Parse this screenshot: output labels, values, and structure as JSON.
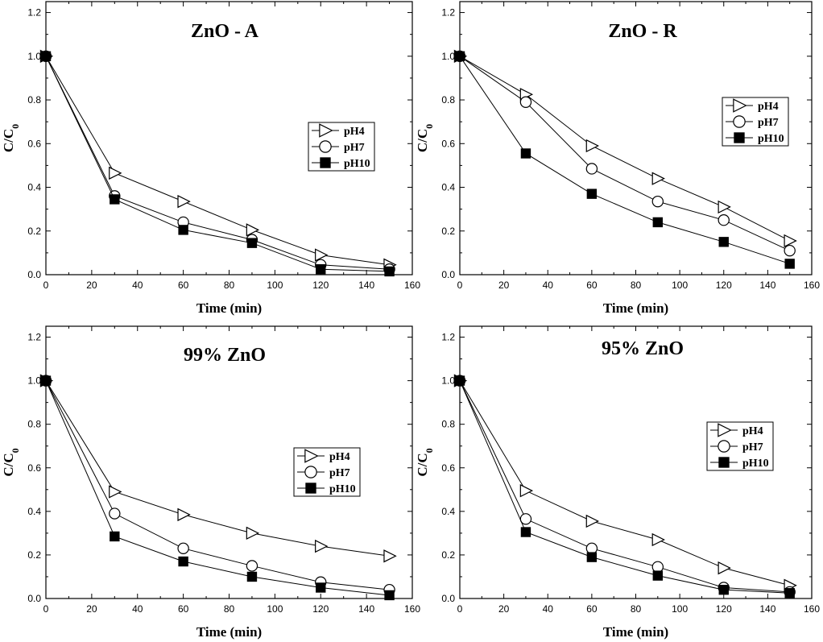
{
  "chart_data": [
    {
      "type": "line",
      "title": "ZnO - A",
      "xlabel": "Time (min)",
      "ylabel": "C/C0",
      "xlim": [
        0,
        160
      ],
      "ylim": [
        0,
        1.25
      ],
      "xticks": [
        0,
        20,
        40,
        60,
        80,
        100,
        120,
        140,
        160
      ],
      "yticks": [
        0.0,
        0.2,
        0.4,
        0.6,
        0.8,
        1.0,
        1.2
      ],
      "x": [
        0,
        30,
        60,
        90,
        120,
        150
      ],
      "legend_position": "center-right",
      "series": [
        {
          "name": "pH4",
          "marker": "triangle-right-open",
          "values": [
            1.0,
            0.465,
            0.335,
            0.205,
            0.09,
            0.045
          ]
        },
        {
          "name": "pH7",
          "marker": "circle-open",
          "values": [
            1.0,
            0.36,
            0.24,
            0.16,
            0.045,
            0.025
          ]
        },
        {
          "name": "pH10",
          "marker": "square-filled",
          "values": [
            1.0,
            0.345,
            0.205,
            0.145,
            0.025,
            0.015
          ]
        }
      ]
    },
    {
      "type": "line",
      "title": "ZnO - R",
      "xlabel": "Time (min)",
      "ylabel": "C/C0",
      "xlim": [
        0,
        160
      ],
      "ylim": [
        0,
        1.25
      ],
      "xticks": [
        0,
        20,
        40,
        60,
        80,
        100,
        120,
        140,
        160
      ],
      "yticks": [
        0.0,
        0.2,
        0.4,
        0.6,
        0.8,
        1.0,
        1.2
      ],
      "x": [
        0,
        30,
        60,
        90,
        120,
        150
      ],
      "legend_position": "upper-right",
      "series": [
        {
          "name": "pH4",
          "marker": "triangle-right-open",
          "values": [
            1.0,
            0.825,
            0.59,
            0.44,
            0.31,
            0.155
          ]
        },
        {
          "name": "pH7",
          "marker": "circle-open",
          "values": [
            1.0,
            0.79,
            0.485,
            0.335,
            0.25,
            0.11
          ]
        },
        {
          "name": "pH10",
          "marker": "square-filled",
          "values": [
            1.0,
            0.555,
            0.37,
            0.24,
            0.15,
            0.05
          ]
        }
      ]
    },
    {
      "type": "line",
      "title": "99% ZnO",
      "xlabel": "Time (min)",
      "ylabel": "C/C0",
      "xlim": [
        0,
        160
      ],
      "ylim": [
        0,
        1.25
      ],
      "xticks": [
        0,
        20,
        40,
        60,
        80,
        100,
        120,
        140,
        160
      ],
      "yticks": [
        0.0,
        0.2,
        0.4,
        0.6,
        0.8,
        1.0,
        1.2
      ],
      "x": [
        0,
        30,
        60,
        90,
        120,
        150
      ],
      "legend_position": "center-right",
      "series": [
        {
          "name": "pH4",
          "marker": "triangle-right-open",
          "values": [
            1.0,
            0.49,
            0.385,
            0.3,
            0.24,
            0.195
          ]
        },
        {
          "name": "pH7",
          "marker": "circle-open",
          "values": [
            1.0,
            0.39,
            0.23,
            0.15,
            0.075,
            0.04
          ]
        },
        {
          "name": "pH10",
          "marker": "square-filled",
          "values": [
            1.0,
            0.285,
            0.17,
            0.1,
            0.05,
            0.015
          ]
        }
      ]
    },
    {
      "type": "line",
      "title": "95% ZnO",
      "xlabel": "Time (min)",
      "ylabel": "C/C0",
      "xlim": [
        0,
        160
      ],
      "ylim": [
        0,
        1.25
      ],
      "xticks": [
        0,
        20,
        40,
        60,
        80,
        100,
        120,
        140,
        160
      ],
      "yticks": [
        0.0,
        0.2,
        0.4,
        0.6,
        0.8,
        1.0,
        1.2
      ],
      "x": [
        0,
        30,
        60,
        90,
        120,
        150
      ],
      "legend_position": "center-right",
      "series": [
        {
          "name": "pH4",
          "marker": "triangle-right-open",
          "values": [
            1.0,
            0.495,
            0.355,
            0.27,
            0.14,
            0.06
          ]
        },
        {
          "name": "pH7",
          "marker": "circle-open",
          "values": [
            1.0,
            0.365,
            0.23,
            0.145,
            0.05,
            0.03
          ]
        },
        {
          "name": "pH10",
          "marker": "square-filled",
          "values": [
            1.0,
            0.305,
            0.19,
            0.105,
            0.04,
            0.025
          ]
        }
      ]
    }
  ]
}
